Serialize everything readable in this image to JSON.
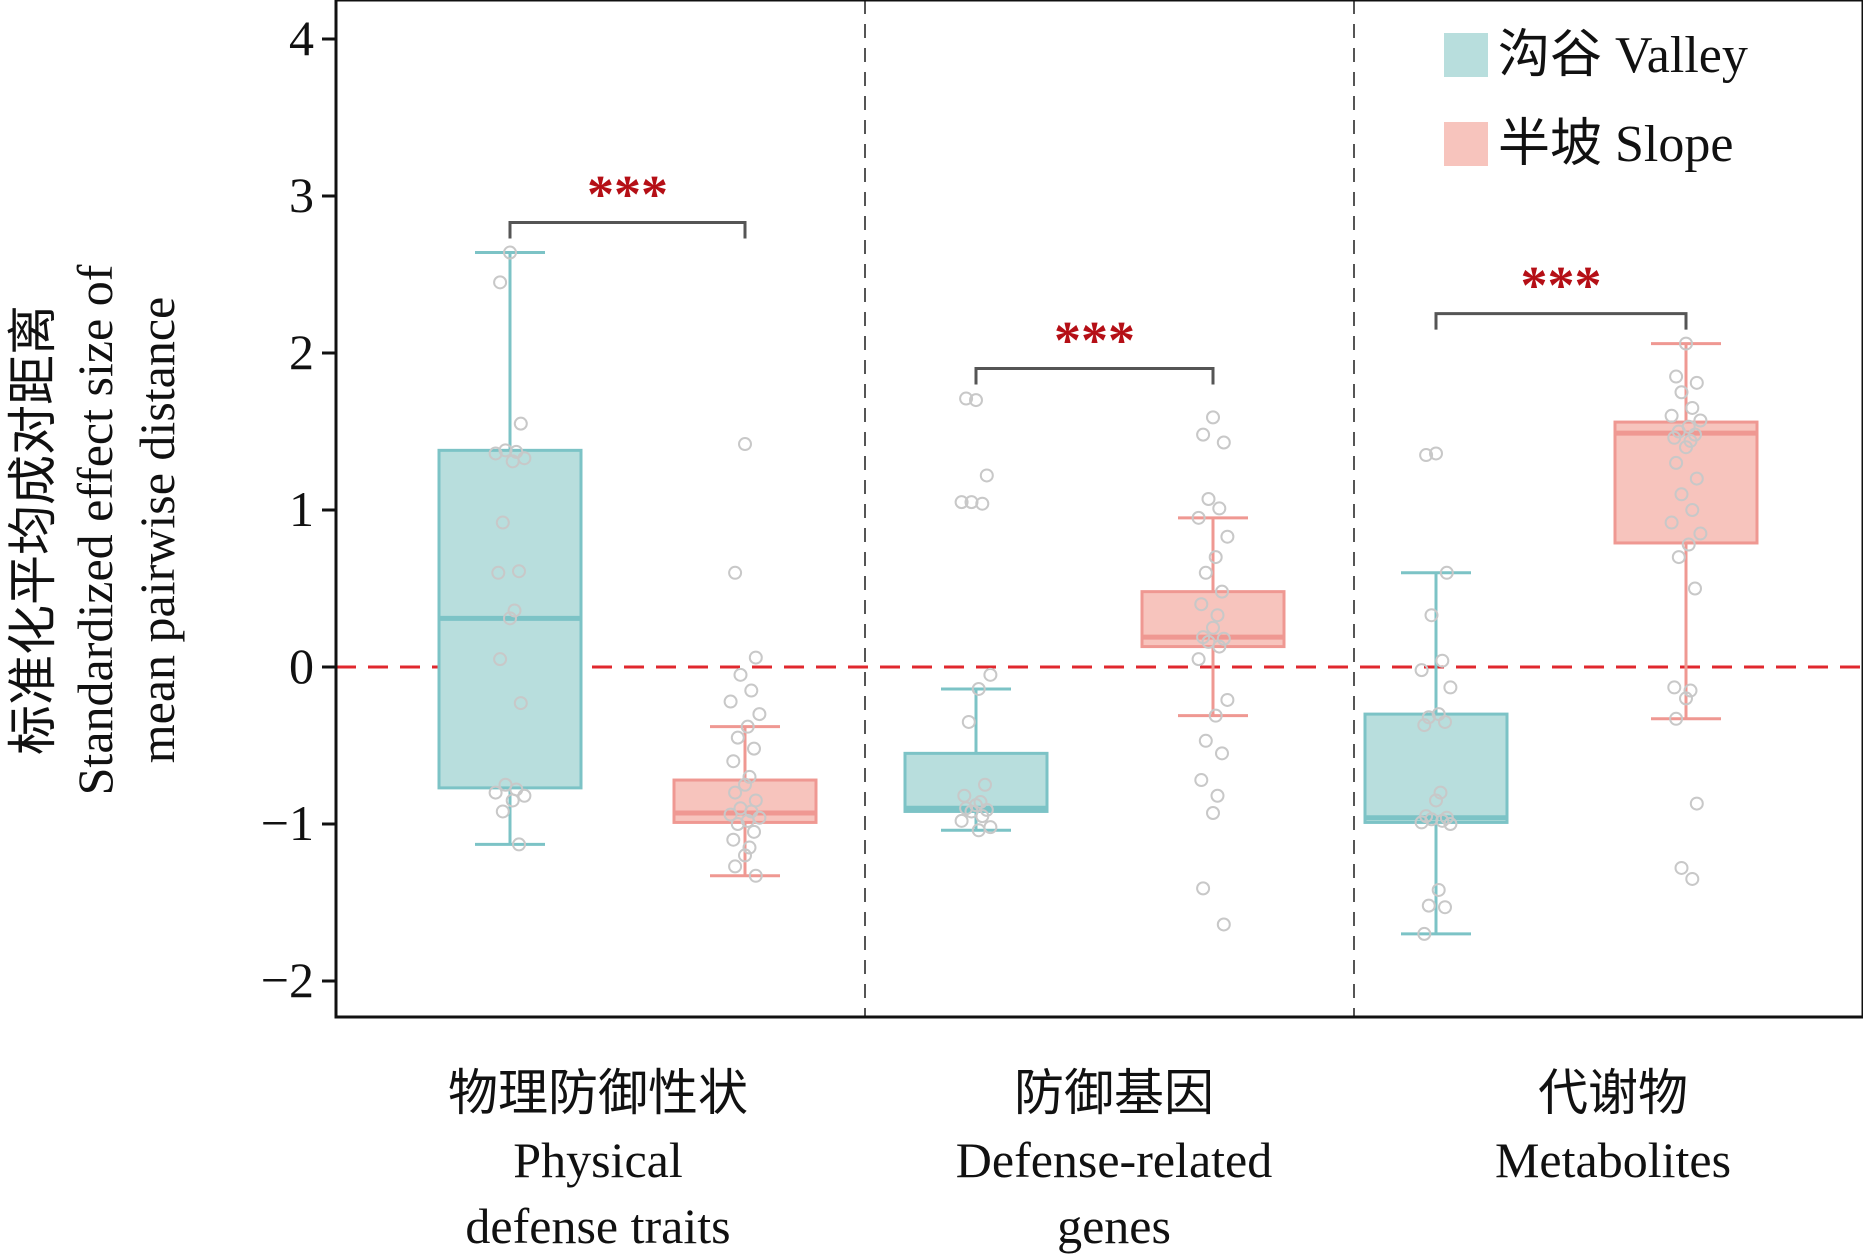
{
  "chart_data": {
    "type": "box",
    "ylabel": [
      "标准化平均成对距离",
      "Standardized effect size of",
      "mean pairwise distance"
    ],
    "ylim": [
      -2.25,
      4.2
    ],
    "yticks": [
      4,
      3,
      2,
      1,
      0,
      -1,
      -2
    ],
    "ytick_labels": [
      "4",
      "3",
      "2",
      "1",
      "0",
      "−1",
      "−2"
    ],
    "reference_line": {
      "y": 0,
      "style": "dashed",
      "color": "#e0282e"
    },
    "colors": {
      "valley": {
        "fill": "#b8dedd",
        "stroke": "#7cc3c6"
      },
      "slope": {
        "fill": "#f7c4bd",
        "stroke": "#ef9892"
      },
      "point": "#c8c8c8",
      "bracket": "#555555",
      "sig": "#b50f16",
      "divider": "#555555"
    },
    "legend": {
      "position": "top-right",
      "entries": [
        {
          "key": "valley",
          "label": "沟谷 Valley"
        },
        {
          "key": "slope",
          "label": "半坡 Slope"
        }
      ]
    },
    "groups": [
      {
        "label": [
          "物理防御性状",
          "Physical",
          "defense traits"
        ],
        "boxes": [
          {
            "series": "valley",
            "whisker_low": -1.13,
            "q1": -0.77,
            "median": 0.31,
            "q3": 1.38,
            "whisker_high": 2.64,
            "points": [
              2.64,
              2.45,
              1.55,
              1.38,
              1.37,
              1.36,
              1.33,
              1.31,
              0.92,
              0.61,
              0.6,
              0.36,
              0.31,
              0.05,
              -0.23,
              -0.75,
              -0.78,
              -0.8,
              -0.82,
              -0.85,
              -0.92,
              -1.13
            ]
          },
          {
            "series": "slope",
            "whisker_low": -1.33,
            "q1": -0.99,
            "median": -0.93,
            "q3": -0.72,
            "whisker_high": -0.38,
            "points": [
              1.42,
              0.6,
              0.06,
              -0.05,
              -0.15,
              -0.22,
              -0.3,
              -0.38,
              -0.45,
              -0.52,
              -0.6,
              -0.7,
              -0.75,
              -0.8,
              -0.85,
              -0.9,
              -0.92,
              -0.94,
              -0.96,
              -0.98,
              -1.0,
              -1.05,
              -1.1,
              -1.15,
              -1.2,
              -1.27,
              -1.33
            ]
          }
        ],
        "significance": "***"
      },
      {
        "label": [
          "防御基因",
          "Defense-related",
          "genes"
        ],
        "boxes": [
          {
            "series": "valley",
            "whisker_low": -1.04,
            "q1": -0.92,
            "median": -0.9,
            "q3": -0.55,
            "whisker_high": -0.14,
            "points": [
              1.7,
              1.71,
              1.22,
              1.05,
              1.04,
              1.05,
              -0.05,
              -0.14,
              -0.35,
              -0.75,
              -0.82,
              -0.86,
              -0.88,
              -0.9,
              -0.91,
              -0.92,
              -0.95,
              -0.98,
              -1.02,
              -1.04
            ]
          },
          {
            "series": "slope",
            "whisker_low": -0.31,
            "q1": 0.13,
            "median": 0.19,
            "q3": 0.48,
            "whisker_high": 0.95,
            "points": [
              1.59,
              1.48,
              1.43,
              1.07,
              1.01,
              0.95,
              0.83,
              0.7,
              0.6,
              0.48,
              0.4,
              0.33,
              0.25,
              0.19,
              0.18,
              0.16,
              0.13,
              0.05,
              -0.21,
              -0.31,
              -0.47,
              -0.55,
              -0.72,
              -0.82,
              -0.93,
              -1.41,
              -1.64
            ]
          }
        ],
        "significance": "***"
      },
      {
        "label": [
          "代谢物",
          "Metabolites"
        ],
        "boxes": [
          {
            "series": "valley",
            "whisker_low": -1.7,
            "q1": -0.99,
            "median": -0.96,
            "q3": -0.3,
            "whisker_high": 0.6,
            "points": [
              1.36,
              1.35,
              0.6,
              0.33,
              0.04,
              -0.02,
              -0.13,
              -0.3,
              -0.32,
              -0.35,
              -0.37,
              -0.8,
              -0.85,
              -0.95,
              -0.96,
              -0.97,
              -0.98,
              -0.99,
              -1.0,
              -1.42,
              -1.52,
              -1.53,
              -1.7
            ]
          },
          {
            "series": "slope",
            "whisker_low": -0.33,
            "q1": 0.79,
            "median": 1.49,
            "q3": 1.56,
            "whisker_high": 2.06,
            "points": [
              2.06,
              1.85,
              1.81,
              1.75,
              1.65,
              1.6,
              1.57,
              1.53,
              1.5,
              1.48,
              1.46,
              1.44,
              1.4,
              1.3,
              1.2,
              1.1,
              1.0,
              0.92,
              0.85,
              0.78,
              0.7,
              0.5,
              -0.13,
              -0.15,
              -0.2,
              -0.33,
              -0.87,
              -1.28,
              -1.35
            ]
          }
        ],
        "significance": "***"
      }
    ]
  }
}
